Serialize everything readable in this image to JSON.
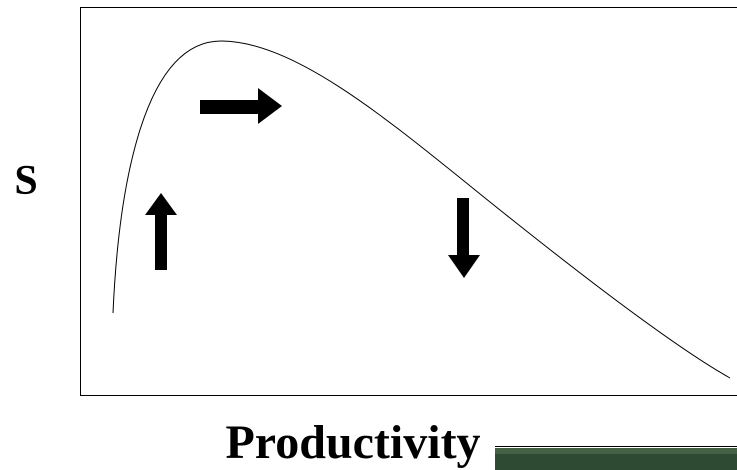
{
  "y_label": "S",
  "x_label": "Productivity"
}
